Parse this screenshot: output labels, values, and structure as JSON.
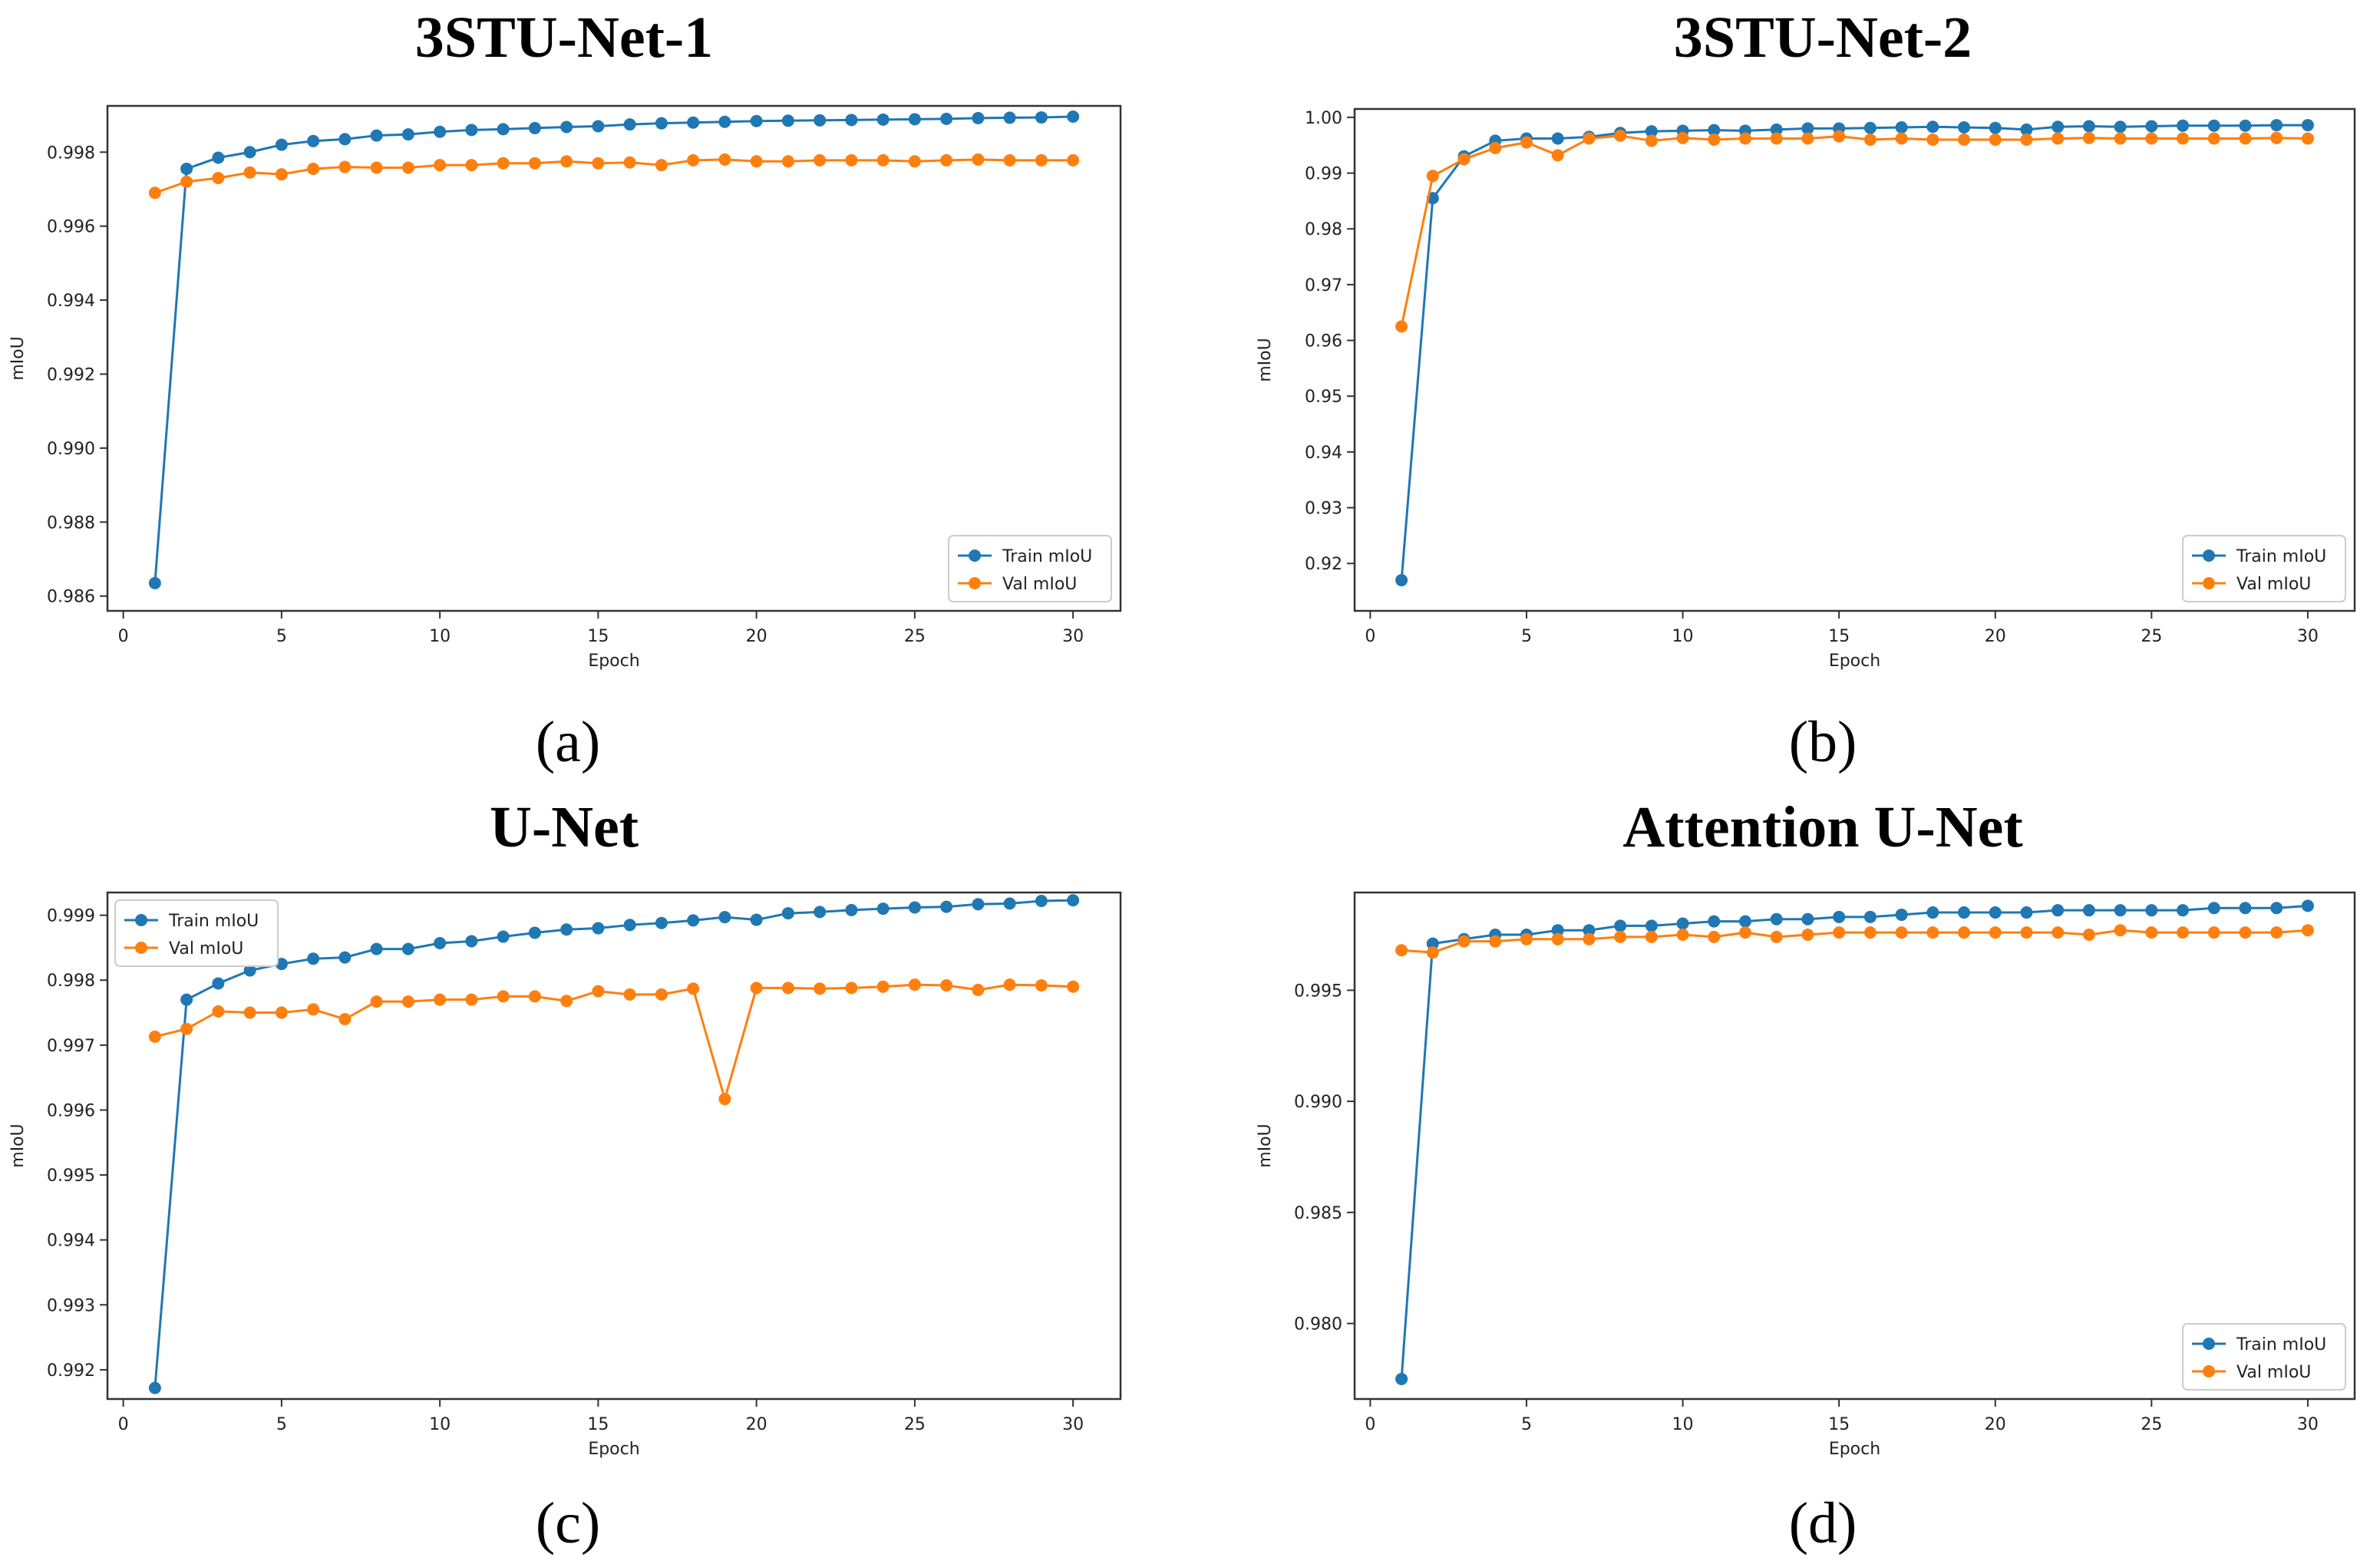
{
  "colors": {
    "train": "#1f77b4",
    "val": "#ff7f0e",
    "axis": "#333333",
    "legend_border": "#cccccc"
  },
  "panels": [
    {
      "label": "(a)"
    },
    {
      "label": "(b)"
    },
    {
      "label": "(c)"
    },
    {
      "label": "(d)"
    }
  ],
  "chart_data": [
    {
      "type": "line",
      "title": "3STU-Net-1",
      "xlabel": "Epoch",
      "ylabel": "mIoU",
      "xlim": [
        -0.5,
        31.5
      ],
      "ylim": [
        0.9856,
        0.99925
      ],
      "xticks": [
        0,
        5,
        10,
        15,
        20,
        25,
        30
      ],
      "xtick_labels": [
        "0",
        "5",
        "10",
        "15",
        "20",
        "25",
        "30"
      ],
      "yticks": [
        0.986,
        0.988,
        0.99,
        0.992,
        0.994,
        0.996,
        0.998
      ],
      "ytick_labels": [
        "0.986",
        "0.988",
        "0.990",
        "0.992",
        "0.994",
        "0.996",
        "0.998"
      ],
      "legend": "bottom-right",
      "x": [
        1,
        2,
        3,
        4,
        5,
        6,
        7,
        8,
        9,
        10,
        11,
        12,
        13,
        14,
        15,
        16,
        17,
        18,
        19,
        20,
        21,
        22,
        23,
        24,
        25,
        26,
        27,
        28,
        29,
        30
      ],
      "series": [
        {
          "name": "Train mIoU",
          "color_key": "train",
          "values": [
            0.98635,
            0.99755,
            0.99785,
            0.998,
            0.9982,
            0.9983,
            0.99835,
            0.99845,
            0.99848,
            0.99855,
            0.9986,
            0.99862,
            0.99865,
            0.99868,
            0.9987,
            0.99875,
            0.99878,
            0.9988,
            0.99882,
            0.99884,
            0.99885,
            0.99886,
            0.99887,
            0.99888,
            0.99889,
            0.9989,
            0.99892,
            0.99893,
            0.99894,
            0.99896
          ]
        },
        {
          "name": "Val mIoU",
          "color_key": "val",
          "values": [
            0.9969,
            0.9972,
            0.9973,
            0.99745,
            0.9974,
            0.99755,
            0.9976,
            0.99758,
            0.99758,
            0.99765,
            0.99765,
            0.9977,
            0.9977,
            0.99775,
            0.9977,
            0.99772,
            0.99765,
            0.99778,
            0.9978,
            0.99775,
            0.99775,
            0.99778,
            0.99778,
            0.99778,
            0.99775,
            0.99778,
            0.9978,
            0.99778,
            0.99778,
            0.99778
          ]
        }
      ]
    },
    {
      "type": "line",
      "title": "3STU-Net-2",
      "xlabel": "Epoch",
      "ylabel": "mIoU",
      "xlim": [
        -0.5,
        31.5
      ],
      "ylim": [
        0.9115,
        1.0015
      ],
      "xticks": [
        0,
        5,
        10,
        15,
        20,
        25,
        30
      ],
      "xtick_labels": [
        "0",
        "5",
        "10",
        "15",
        "20",
        "25",
        "30"
      ],
      "yticks": [
        0.92,
        0.93,
        0.94,
        0.95,
        0.96,
        0.97,
        0.98,
        0.99,
        1.0
      ],
      "ytick_labels": [
        "0.92",
        "0.93",
        "0.94",
        "0.95",
        "0.96",
        "0.97",
        "0.98",
        "0.99",
        "1.00"
      ],
      "legend": "bottom-right",
      "x": [
        1,
        2,
        3,
        4,
        5,
        6,
        7,
        8,
        9,
        10,
        11,
        12,
        13,
        14,
        15,
        16,
        17,
        18,
        19,
        20,
        21,
        22,
        23,
        24,
        25,
        26,
        27,
        28,
        29,
        30
      ],
      "series": [
        {
          "name": "Train mIoU",
          "color_key": "train",
          "values": [
            0.917,
            0.9855,
            0.993,
            0.9958,
            0.9962,
            0.9962,
            0.9965,
            0.9972,
            0.9975,
            0.9976,
            0.9977,
            0.9976,
            0.9978,
            0.998,
            0.998,
            0.9981,
            0.9982,
            0.9983,
            0.9982,
            0.9981,
            0.9978,
            0.9983,
            0.9984,
            0.9983,
            0.9984,
            0.9985,
            0.9985,
            0.9985,
            0.9986,
            0.9986
          ]
        },
        {
          "name": "Val mIoU",
          "color_key": "val",
          "values": [
            0.9625,
            0.9895,
            0.9925,
            0.9945,
            0.9955,
            0.9932,
            0.9962,
            0.9967,
            0.9958,
            0.9963,
            0.996,
            0.9962,
            0.9962,
            0.9962,
            0.9966,
            0.996,
            0.9962,
            0.996,
            0.996,
            0.996,
            0.996,
            0.9962,
            0.9963,
            0.9962,
            0.9962,
            0.9962,
            0.9962,
            0.9962,
            0.9963,
            0.9962
          ]
        }
      ]
    },
    {
      "type": "line",
      "title": "U-Net",
      "xlabel": "Epoch",
      "ylabel": "mIoU",
      "xlim": [
        -0.5,
        31.5
      ],
      "ylim": [
        0.99155,
        0.99935
      ],
      "xticks": [
        0,
        5,
        10,
        15,
        20,
        25,
        30
      ],
      "xtick_labels": [
        "0",
        "5",
        "10",
        "15",
        "20",
        "25",
        "30"
      ],
      "yticks": [
        0.992,
        0.993,
        0.994,
        0.995,
        0.996,
        0.997,
        0.998,
        0.999
      ],
      "ytick_labels": [
        "0.992",
        "0.993",
        "0.994",
        "0.995",
        "0.996",
        "0.997",
        "0.998",
        "0.999"
      ],
      "legend": "top-left",
      "x": [
        1,
        2,
        3,
        4,
        5,
        6,
        7,
        8,
        9,
        10,
        11,
        12,
        13,
        14,
        15,
        16,
        17,
        18,
        19,
        20,
        21,
        22,
        23,
        24,
        25,
        26,
        27,
        28,
        29,
        30
      ],
      "series": [
        {
          "name": "Train mIoU",
          "color_key": "train",
          "values": [
            0.99172,
            0.9977,
            0.99795,
            0.99815,
            0.99825,
            0.99833,
            0.99835,
            0.99848,
            0.99848,
            0.99857,
            0.9986,
            0.99867,
            0.99873,
            0.99878,
            0.9988,
            0.99885,
            0.99888,
            0.99892,
            0.99897,
            0.99893,
            0.99903,
            0.99905,
            0.99908,
            0.9991,
            0.99912,
            0.99913,
            0.99917,
            0.99918,
            0.99922,
            0.99923
          ]
        },
        {
          "name": "Val mIoU",
          "color_key": "val",
          "values": [
            0.99713,
            0.99725,
            0.99752,
            0.9975,
            0.9975,
            0.99755,
            0.9974,
            0.99767,
            0.99767,
            0.9977,
            0.9977,
            0.99775,
            0.99775,
            0.99768,
            0.99783,
            0.99778,
            0.99778,
            0.99787,
            0.99617,
            0.99788,
            0.99788,
            0.99787,
            0.99788,
            0.9979,
            0.99793,
            0.99792,
            0.99785,
            0.99793,
            0.99792,
            0.9979
          ]
        }
      ]
    },
    {
      "type": "line",
      "title": "Attention U-Net",
      "xlabel": "Epoch",
      "ylabel": "mIoU",
      "xlim": [
        -0.5,
        31.5
      ],
      "ylim": [
        0.9766,
        0.9994
      ],
      "xticks": [
        0,
        5,
        10,
        15,
        20,
        25,
        30
      ],
      "xtick_labels": [
        "0",
        "5",
        "10",
        "15",
        "20",
        "25",
        "30"
      ],
      "yticks": [
        0.98,
        0.985,
        0.99,
        0.995
      ],
      "ytick_labels": [
        "0.980",
        "0.985",
        "0.990",
        "0.995"
      ],
      "legend": "bottom-right",
      "x": [
        1,
        2,
        3,
        4,
        5,
        6,
        7,
        8,
        9,
        10,
        11,
        12,
        13,
        14,
        15,
        16,
        17,
        18,
        19,
        20,
        21,
        22,
        23,
        24,
        25,
        26,
        27,
        28,
        29,
        30
      ],
      "series": [
        {
          "name": "Train mIoU",
          "color_key": "train",
          "values": [
            0.9775,
            0.9971,
            0.9973,
            0.9975,
            0.9975,
            0.9977,
            0.9977,
            0.9979,
            0.9979,
            0.998,
            0.9981,
            0.9981,
            0.9982,
            0.9982,
            0.9983,
            0.9983,
            0.9984,
            0.9985,
            0.9985,
            0.9985,
            0.9985,
            0.9986,
            0.9986,
            0.9986,
            0.9986,
            0.9986,
            0.9987,
            0.9987,
            0.9987,
            0.9988
          ]
        },
        {
          "name": "Val mIoU",
          "color_key": "val",
          "values": [
            0.9968,
            0.9967,
            0.9972,
            0.9972,
            0.9973,
            0.9973,
            0.9973,
            0.9974,
            0.9974,
            0.9975,
            0.9974,
            0.9976,
            0.9974,
            0.9975,
            0.9976,
            0.9976,
            0.9976,
            0.9976,
            0.9976,
            0.9976,
            0.9976,
            0.9976,
            0.9975,
            0.9977,
            0.9976,
            0.9976,
            0.9976,
            0.9976,
            0.9976,
            0.9977
          ]
        }
      ]
    }
  ]
}
